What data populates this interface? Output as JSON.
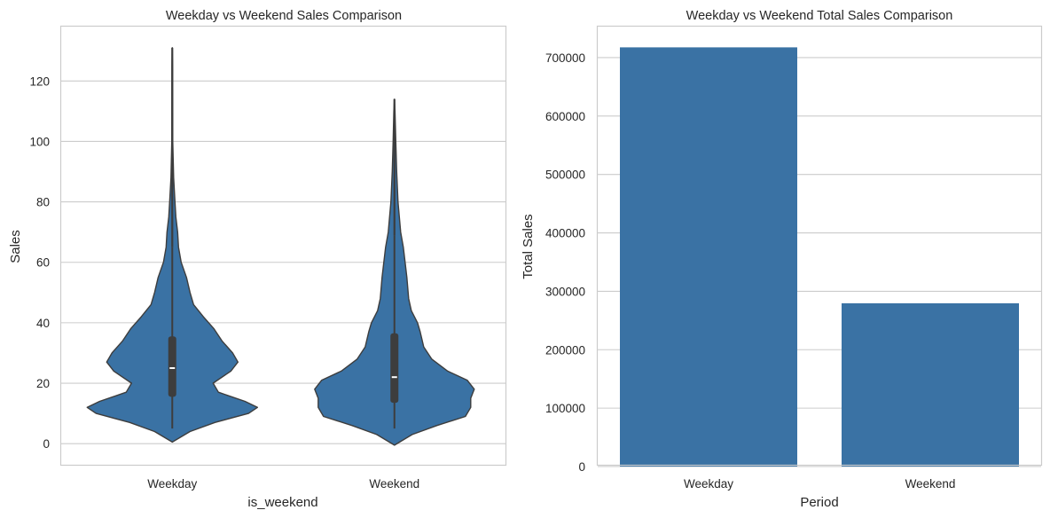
{
  "chart_data": [
    {
      "type": "violin",
      "title": "Weekday vs Weekend Sales Comparison",
      "xlabel": "is_weekend",
      "ylabel": "Sales",
      "categories": [
        "Weekday",
        "Weekend"
      ],
      "ylim": [
        -7,
        138
      ],
      "yticks": [
        0,
        20,
        40,
        60,
        80,
        100,
        120
      ],
      "grid": true,
      "color": "#3a72a4",
      "violins": [
        {
          "category": "Weekday",
          "min": 5,
          "q1": 15.5,
          "median": 25,
          "q3": 35.5,
          "whisker_high": 65,
          "max": 131,
          "density": [
            [
              0.5,
              0
            ],
            [
              4,
              0.2
            ],
            [
              7,
              0.48
            ],
            [
              10,
              0.86
            ],
            [
              12,
              0.96
            ],
            [
              14,
              0.82
            ],
            [
              17,
              0.52
            ],
            [
              20,
              0.46
            ],
            [
              24,
              0.66
            ],
            [
              27,
              0.74
            ],
            [
              30,
              0.68
            ],
            [
              34,
              0.56
            ],
            [
              38,
              0.47
            ],
            [
              42,
              0.35
            ],
            [
              46,
              0.24
            ],
            [
              50,
              0.2
            ],
            [
              55,
              0.16
            ],
            [
              60,
              0.1
            ],
            [
              65,
              0.07
            ],
            [
              70,
              0.06
            ],
            [
              75,
              0.04
            ],
            [
              80,
              0.03
            ],
            [
              88,
              0.015
            ],
            [
              100,
              0.006
            ],
            [
              115,
              0.004
            ],
            [
              125,
              0.003
            ],
            [
              131,
              0
            ]
          ]
        },
        {
          "category": "Weekend",
          "min": 5,
          "q1": 13.5,
          "median": 22,
          "q3": 36.5,
          "whisker_high": 69,
          "max": 114,
          "density": [
            [
              -0.5,
              0
            ],
            [
              3,
              0.2
            ],
            [
              6,
              0.48
            ],
            [
              9,
              0.8
            ],
            [
              12,
              0.86
            ],
            [
              15,
              0.86
            ],
            [
              18,
              0.9
            ],
            [
              21,
              0.82
            ],
            [
              24,
              0.6
            ],
            [
              28,
              0.42
            ],
            [
              32,
              0.33
            ],
            [
              37,
              0.29
            ],
            [
              40,
              0.26
            ],
            [
              44,
              0.19
            ],
            [
              48,
              0.16
            ],
            [
              55,
              0.14
            ],
            [
              60,
              0.12
            ],
            [
              65,
              0.1
            ],
            [
              70,
              0.07
            ],
            [
              80,
              0.04
            ],
            [
              90,
              0.025
            ],
            [
              100,
              0.015
            ],
            [
              110,
              0.006
            ],
            [
              114,
              0
            ]
          ]
        }
      ]
    },
    {
      "type": "bar",
      "title": "Weekday vs Weekend Total Sales Comparison",
      "xlabel": "Period",
      "ylabel": "Total Sales",
      "categories": [
        "Weekday",
        "Weekend"
      ],
      "values": [
        717500,
        279500
      ],
      "ylim": [
        0,
        753000
      ],
      "yticks": [
        0,
        100000,
        200000,
        300000,
        400000,
        500000,
        600000,
        700000
      ],
      "grid": true,
      "color": "#3a72a4"
    }
  ]
}
